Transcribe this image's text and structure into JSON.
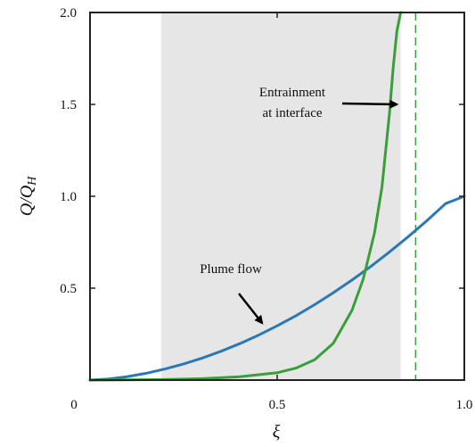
{
  "chart_data": {
    "type": "line",
    "title": "",
    "xlabel": "ξ",
    "ylabel": {
      "main": "Q/Q",
      "subscript": "H"
    },
    "xlim": [
      0,
      1
    ],
    "ylim": [
      0,
      2
    ],
    "grid": false,
    "x_ticks": [
      {
        "value": 0,
        "label": "0"
      },
      {
        "value": 0.5,
        "label": "0.5"
      },
      {
        "value": 1,
        "label": "1.0"
      }
    ],
    "y_ticks": [
      {
        "value": 0.5,
        "label": "0.5"
      },
      {
        "value": 1.0,
        "label": "1.0"
      },
      {
        "value": 1.5,
        "label": "1.5"
      },
      {
        "value": 2.0,
        "label": "2.0"
      }
    ],
    "shaded_region": {
      "x_start": 0.19,
      "x_end": 0.83,
      "color": "#e6e6e6"
    },
    "vertical_reference": {
      "x": 0.87,
      "style": "dashed",
      "color": "#3a9e3a"
    },
    "series": [
      {
        "color": "#2b78b5",
        "x": [
          0,
          0.05,
          0.1,
          0.15,
          0.2,
          0.25,
          0.3,
          0.35,
          0.4,
          0.45,
          0.5,
          0.55,
          0.6,
          0.65,
          0.7,
          0.75,
          0.8,
          0.85,
          0.9,
          0.95,
          1.0
        ],
        "y": [
          0,
          0.006,
          0.019,
          0.037,
          0.06,
          0.088,
          0.12,
          0.157,
          0.198,
          0.244,
          0.295,
          0.35,
          0.41,
          0.475,
          0.544,
          0.618,
          0.697,
          0.78,
          0.867,
          0.96,
          1.0
        ]
      },
      {
        "color": "#3a9e3a",
        "x": [
          0,
          0.1,
          0.2,
          0.3,
          0.4,
          0.5,
          0.55,
          0.6,
          0.65,
          0.7,
          0.73,
          0.76,
          0.78,
          0.8,
          0.81,
          0.82,
          0.83
        ],
        "y": [
          0,
          0.001,
          0.003,
          0.008,
          0.018,
          0.04,
          0.065,
          0.11,
          0.2,
          0.38,
          0.55,
          0.8,
          1.05,
          1.45,
          1.7,
          1.9,
          2.0
        ]
      }
    ],
    "annotations": [
      {
        "lines": [
          "Entrainment",
          "at interface"
        ],
        "arrow_to": [
          0.82,
          1.5
        ]
      },
      {
        "lines": [
          "Plume flow"
        ],
        "arrow_to": [
          0.46,
          0.31
        ]
      }
    ]
  }
}
